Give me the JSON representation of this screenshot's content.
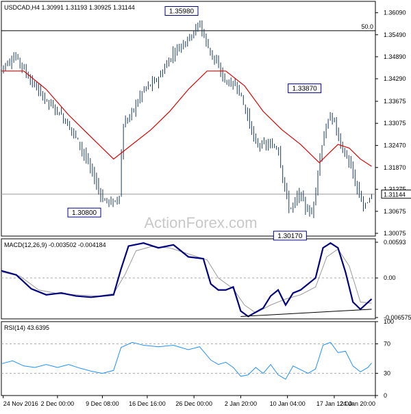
{
  "chart_data": [
    {
      "type": "candlestick",
      "title": "USDCAD,H4  1.30991 1.31193 1.30925 1.31144",
      "ylim": [
        1.3,
        1.364
      ],
      "y_ticks": [
        "1.36090",
        "1.35490",
        "1.34890",
        "1.34290",
        "1.33675",
        "1.33075",
        "1.32470",
        "1.31870",
        "1.31275",
        "1.30675",
        "1.30075"
      ],
      "last_price": "1.31144",
      "fib_label": "50.0",
      "fib_level": 1.356,
      "watermark": "ActionForex.com",
      "ma_color": "#e00000",
      "annotations": [
        {
          "text": "1.35980",
          "x": 0.522,
          "y": 1.3598
        },
        {
          "text": "1.30800",
          "x": 0.262,
          "y": 1.308
        },
        {
          "text": "1.33870",
          "x": 0.851,
          "y": 1.3387
        },
        {
          "text": "1.30170",
          "x": 0.812,
          "y": 1.3017
        }
      ],
      "price_path": [
        [
          0.0,
          1.346
        ],
        [
          0.04,
          1.349
        ],
        [
          0.08,
          1.342
        ],
        [
          0.12,
          1.337
        ],
        [
          0.16,
          1.333
        ],
        [
          0.2,
          1.327
        ],
        [
          0.24,
          1.318
        ],
        [
          0.27,
          1.31
        ],
        [
          0.3,
          1.309
        ],
        [
          0.315,
          1.311
        ],
        [
          0.325,
          1.33
        ],
        [
          0.35,
          1.334
        ],
        [
          0.38,
          1.34
        ],
        [
          0.42,
          1.343
        ],
        [
          0.46,
          1.35
        ],
        [
          0.5,
          1.354
        ],
        [
          0.53,
          1.358
        ],
        [
          0.55,
          1.352
        ],
        [
          0.58,
          1.346
        ],
        [
          0.6,
          1.342
        ],
        [
          0.63,
          1.341
        ],
        [
          0.66,
          1.332
        ],
        [
          0.68,
          1.325
        ],
        [
          0.71,
          1.325
        ],
        [
          0.74,
          1.324
        ],
        [
          0.75,
          1.317
        ],
        [
          0.77,
          1.307
        ],
        [
          0.8,
          1.312
        ],
        [
          0.81,
          1.308
        ],
        [
          0.83,
          1.306
        ],
        [
          0.86,
          1.327
        ],
        [
          0.88,
          1.333
        ],
        [
          0.89,
          1.331
        ],
        [
          0.91,
          1.324
        ],
        [
          0.93,
          1.32
        ],
        [
          0.95,
          1.313
        ],
        [
          0.97,
          1.308
        ],
        [
          0.99,
          1.311
        ]
      ],
      "ma_path": [
        [
          0.0,
          1.345
        ],
        [
          0.06,
          1.345
        ],
        [
          0.12,
          1.34
        ],
        [
          0.18,
          1.333
        ],
        [
          0.24,
          1.327
        ],
        [
          0.3,
          1.321
        ],
        [
          0.35,
          1.325
        ],
        [
          0.4,
          1.329
        ],
        [
          0.45,
          1.334
        ],
        [
          0.5,
          1.34
        ],
        [
          0.55,
          1.345
        ],
        [
          0.6,
          1.345
        ],
        [
          0.65,
          1.341
        ],
        [
          0.7,
          1.334
        ],
        [
          0.75,
          1.329
        ],
        [
          0.8,
          1.325
        ],
        [
          0.85,
          1.32
        ],
        [
          0.88,
          1.323
        ],
        [
          0.9,
          1.325
        ],
        [
          0.93,
          1.324
        ],
        [
          0.96,
          1.321
        ],
        [
          0.99,
          1.319
        ]
      ]
    },
    {
      "type": "line",
      "title": "MACD(12,26,9) -0.003502 -0.004184",
      "ylim": [
        -0.0068,
        0.0065
      ],
      "y_ticks": [
        {
          "label": "0.00593",
          "value": 0.00593
        },
        {
          "label": "0.00",
          "value": 0.0
        },
        {
          "label": "-0.006575",
          "value": -0.006575
        }
      ],
      "macd_color": "#000080",
      "signal_color": "#999999",
      "macd_path": [
        [
          0.0,
          0.0012
        ],
        [
          0.04,
          0.0005
        ],
        [
          0.08,
          -0.0018
        ],
        [
          0.12,
          -0.0028
        ],
        [
          0.16,
          -0.0025
        ],
        [
          0.2,
          -0.003
        ],
        [
          0.24,
          -0.0032
        ],
        [
          0.27,
          -0.003
        ],
        [
          0.3,
          -0.0028
        ],
        [
          0.32,
          0.0015
        ],
        [
          0.34,
          0.0053
        ],
        [
          0.38,
          0.0058
        ],
        [
          0.42,
          0.005
        ],
        [
          0.46,
          0.0055
        ],
        [
          0.5,
          0.0035
        ],
        [
          0.54,
          0.0032
        ],
        [
          0.56,
          -0.001
        ],
        [
          0.58,
          -0.002
        ],
        [
          0.6,
          -0.002
        ],
        [
          0.62,
          -0.0015
        ],
        [
          0.64,
          -0.0055
        ],
        [
          0.66,
          -0.0064
        ],
        [
          0.7,
          -0.005
        ],
        [
          0.72,
          -0.003
        ],
        [
          0.74,
          -0.002
        ],
        [
          0.76,
          -0.0045
        ],
        [
          0.78,
          -0.0025
        ],
        [
          0.8,
          -0.002
        ],
        [
          0.82,
          -0.001
        ],
        [
          0.84,
          0.0
        ],
        [
          0.86,
          0.005
        ],
        [
          0.88,
          0.0058
        ],
        [
          0.9,
          0.005
        ],
        [
          0.92,
          0.001
        ],
        [
          0.94,
          -0.004
        ],
        [
          0.96,
          -0.0052
        ],
        [
          0.99,
          -0.0035
        ]
      ],
      "signal_path": [
        [
          0.0,
          0.001
        ],
        [
          0.05,
          0.0003
        ],
        [
          0.1,
          -0.002
        ],
        [
          0.15,
          -0.0026
        ],
        [
          0.2,
          -0.0028
        ],
        [
          0.26,
          -0.003
        ],
        [
          0.3,
          -0.0026
        ],
        [
          0.33,
          0.0005
        ],
        [
          0.36,
          0.0045
        ],
        [
          0.4,
          0.0052
        ],
        [
          0.45,
          0.005
        ],
        [
          0.5,
          0.004
        ],
        [
          0.55,
          0.003
        ],
        [
          0.58,
          0.0
        ],
        [
          0.62,
          -0.0018
        ],
        [
          0.65,
          -0.0045
        ],
        [
          0.68,
          -0.0058
        ],
        [
          0.72,
          -0.0045
        ],
        [
          0.76,
          -0.0035
        ],
        [
          0.8,
          -0.0028
        ],
        [
          0.84,
          -0.0015
        ],
        [
          0.87,
          0.0035
        ],
        [
          0.9,
          0.0048
        ],
        [
          0.93,
          0.002
        ],
        [
          0.96,
          -0.004
        ],
        [
          0.99,
          -0.0042
        ]
      ],
      "trendline": [
        [
          0.64,
          -0.0064
        ],
        [
          0.99,
          -0.0052
        ]
      ]
    },
    {
      "type": "line",
      "title": "RSI(14) 43.6395",
      "ylim": [
        0,
        100
      ],
      "y_ticks": [
        100,
        70,
        30,
        0
      ],
      "rsi_color": "#1e90ff",
      "rsi_path": [
        [
          0.0,
          43
        ],
        [
          0.03,
          47
        ],
        [
          0.06,
          40
        ],
        [
          0.09,
          38
        ],
        [
          0.12,
          42
        ],
        [
          0.15,
          38
        ],
        [
          0.18,
          42
        ],
        [
          0.21,
          37
        ],
        [
          0.24,
          33
        ],
        [
          0.27,
          30
        ],
        [
          0.3,
          34
        ],
        [
          0.32,
          65
        ],
        [
          0.35,
          72
        ],
        [
          0.38,
          68
        ],
        [
          0.42,
          66
        ],
        [
          0.46,
          68
        ],
        [
          0.5,
          62
        ],
        [
          0.53,
          66
        ],
        [
          0.56,
          48
        ],
        [
          0.58,
          42
        ],
        [
          0.6,
          45
        ],
        [
          0.62,
          38
        ],
        [
          0.64,
          26
        ],
        [
          0.66,
          28
        ],
        [
          0.68,
          38
        ],
        [
          0.7,
          30
        ],
        [
          0.72,
          42
        ],
        [
          0.74,
          28
        ],
        [
          0.76,
          22
        ],
        [
          0.78,
          40
        ],
        [
          0.8,
          35
        ],
        [
          0.82,
          30
        ],
        [
          0.84,
          36
        ],
        [
          0.86,
          68
        ],
        [
          0.88,
          72
        ],
        [
          0.9,
          58
        ],
        [
          0.92,
          60
        ],
        [
          0.94,
          40
        ],
        [
          0.96,
          32
        ],
        [
          0.98,
          38
        ],
        [
          0.99,
          44
        ]
      ]
    }
  ],
  "x_axis": {
    "ticks": [
      {
        "label": "24 Nov 2016",
        "pos": 0.005
      },
      {
        "label": "2 Dec 00:00",
        "pos": 0.15
      },
      {
        "label": "9 Dec 08:00",
        "pos": 0.27
      },
      {
        "label": "16 Dec 16:00",
        "pos": 0.39
      },
      {
        "label": "26 Dec 00:00",
        "pos": 0.515
      },
      {
        "label": "2 Jan 20:00",
        "pos": 0.64
      },
      {
        "label": "10 Jan 04:00",
        "pos": 0.765
      },
      {
        "label": "17 Jan 12:00",
        "pos": 0.89
      },
      {
        "label": "24 Jan 20:00",
        "pos": 1.0
      }
    ]
  }
}
